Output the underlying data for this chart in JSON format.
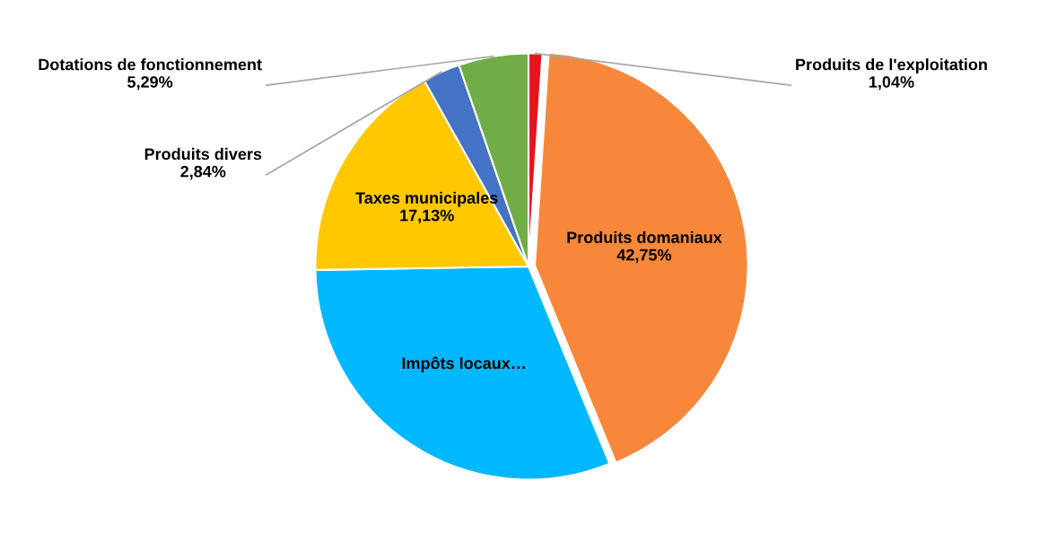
{
  "chart_data": {
    "type": "pie",
    "categories": [
      "Produits de l'exploitation",
      "Produits domaniaux",
      "Impôts locaux…",
      "Taxes municipales",
      "Produits divers",
      "Dotations de fonctionnement"
    ],
    "values": [
      1.04,
      42.75,
      30.95,
      17.13,
      2.84,
      5.29
    ],
    "value_labels": [
      "1,04%",
      "42,75%",
      null,
      "17,13%",
      "2,84%",
      "5,29%"
    ],
    "colors": [
      "#e8141b",
      "#f7883b",
      "#00b8ff",
      "#ffc800",
      "#4472c4",
      "#70ad47"
    ],
    "legend": false
  }
}
